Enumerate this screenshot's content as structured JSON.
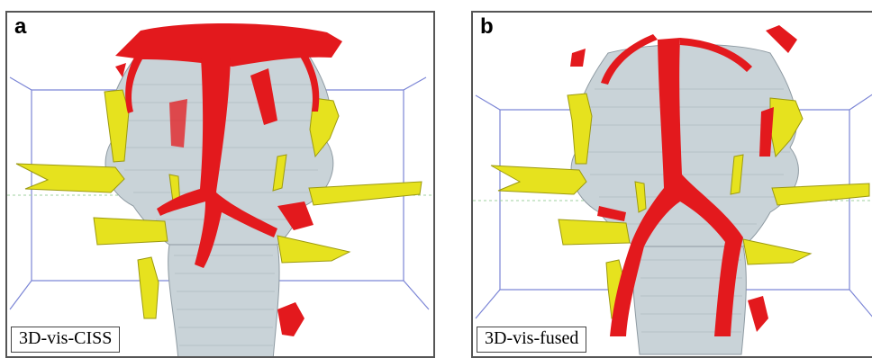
{
  "panels": [
    {
      "letter": "a",
      "caption": "3D-vis-CISS"
    },
    {
      "letter": "b",
      "caption": "3D-vis-fused"
    }
  ],
  "colors": {
    "vessel": "#e3191d",
    "nerve": "#e6e21e",
    "brainstem": "#c9d3d8",
    "bounding_box": "#7c86d6",
    "midline": "#9fd09f"
  }
}
